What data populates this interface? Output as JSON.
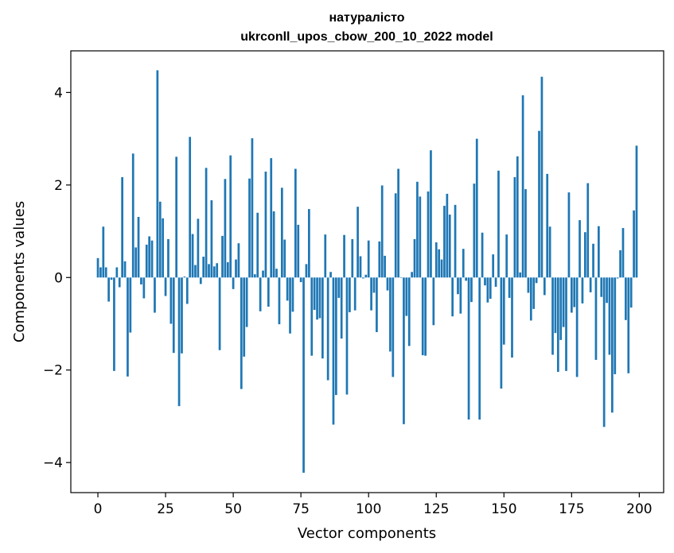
{
  "chart_data": {
    "type": "bar",
    "title_line1": "натуралісто",
    "title_line2": "ukrconll_upos_cbow_200_10_2022 model",
    "xlabel": "Vector components",
    "ylabel": "Components values",
    "xlim": [
      -10,
      209
    ],
    "ylim": [
      -4.65,
      4.9
    ],
    "xticks": [
      0,
      25,
      50,
      75,
      100,
      125,
      150,
      175,
      200
    ],
    "yticks": [
      -4,
      -2,
      0,
      2,
      4
    ],
    "ytick_labels": [
      "−4",
      "−2",
      "0",
      "2",
      "4"
    ],
    "bar_color": "#1f77b4",
    "values": [
      0.42,
      0.22,
      1.1,
      0.22,
      -0.52,
      -0.05,
      -2.02,
      0.22,
      -0.21,
      2.17,
      0.35,
      -2.14,
      -1.19,
      2.68,
      0.65,
      1.31,
      -0.15,
      -0.45,
      0.71,
      0.89,
      0.8,
      -0.76,
      4.48,
      1.64,
      1.28,
      -0.4,
      0.83,
      -1.0,
      -1.63,
      2.61,
      -2.78,
      -1.64,
      0.02,
      -0.57,
      3.04,
      0.94,
      0.27,
      1.27,
      -0.14,
      0.45,
      2.37,
      0.29,
      1.67,
      0.24,
      0.31,
      -1.57,
      0.9,
      2.13,
      0.33,
      2.64,
      -0.25,
      0.39,
      0.74,
      -2.41,
      -1.71,
      -1.07,
      2.14,
      3.01,
      0.07,
      1.4,
      -0.73,
      0.15,
      2.29,
      -0.63,
      2.58,
      1.43,
      0.19,
      -1.01,
      1.94,
      0.82,
      -0.5,
      -1.21,
      -0.74,
      2.35,
      1.14,
      -0.1,
      -4.22,
      0.29,
      1.48,
      -1.69,
      -0.7,
      -0.91,
      -0.88,
      -1.75,
      0.93,
      -2.22,
      0.12,
      -3.18,
      -2.54,
      -0.44,
      -1.32,
      0.92,
      -2.53,
      -0.75,
      0.83,
      -0.71,
      1.53,
      0.46,
      -0.02,
      0.06,
      0.8,
      -0.71,
      -0.33,
      -1.18,
      0.78,
      1.99,
      0.47,
      -0.28,
      -1.6,
      -2.15,
      1.82,
      2.35,
      -0.01,
      -3.17,
      -0.83,
      -1.48,
      0.12,
      0.83,
      2.07,
      1.75,
      -1.68,
      -1.69,
      1.86,
      2.75,
      -1.03,
      0.76,
      0.61,
      0.39,
      1.55,
      1.81,
      1.36,
      -0.84,
      1.57,
      -0.36,
      -0.78,
      0.62,
      -0.07,
      -3.07,
      -0.53,
      2.03,
      3.0,
      -3.07,
      0.97,
      -0.17,
      -0.54,
      -0.46,
      0.5,
      -0.2,
      2.31,
      -2.4,
      -1.45,
      0.93,
      -0.44,
      -1.73,
      2.17,
      2.62,
      0.11,
      3.94,
      1.91,
      -0.33,
      -0.93,
      -0.68,
      -0.12,
      3.17,
      4.34,
      -0.38,
      2.24,
      1.1,
      -1.67,
      -1.2,
      -2.04,
      -1.35,
      -1.07,
      -2.02,
      1.84,
      -0.76,
      -0.64,
      -2.15,
      1.24,
      -0.56,
      0.98,
      2.04,
      -0.32,
      0.73,
      -1.78,
      1.11,
      -0.42,
      -3.23,
      -0.55,
      -1.67,
      -2.92,
      -2.09,
      -0.02,
      0.59,
      1.07,
      -0.92,
      -2.07,
      -0.65,
      1.45,
      2.85
    ]
  }
}
